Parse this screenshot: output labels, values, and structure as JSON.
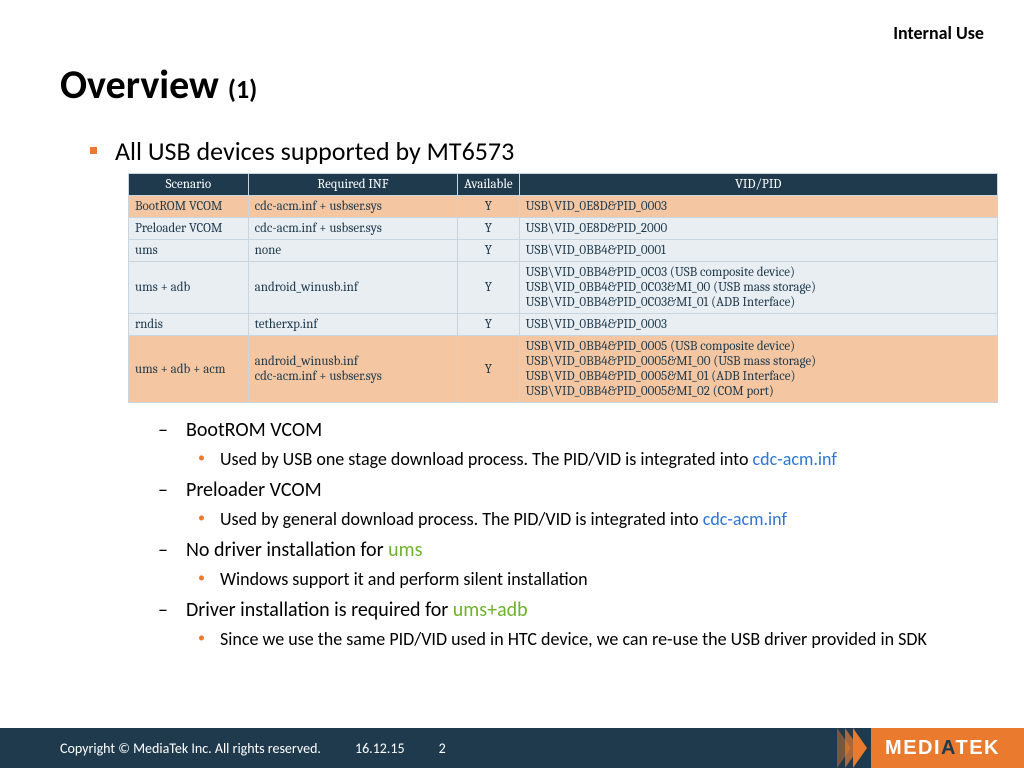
{
  "classification": "Internal Use",
  "title_main": "Overview ",
  "title_sub": "(1)",
  "bullet_main": "All USB devices supported by MT6573",
  "table": {
    "headers": [
      "Scenario",
      "Required INF",
      "Available",
      "VID/PID"
    ],
    "col_widths": [
      "120px",
      "210px",
      "60px",
      "480px"
    ],
    "rows": [
      {
        "cls": "orange",
        "cells": [
          "BootROM VCOM",
          "cdc-acm.inf + usbser.sys",
          "Y",
          "USB\\VID_0E8D&PID_0003"
        ]
      },
      {
        "cls": "light",
        "cells": [
          "Preloader VCOM",
          "cdc-acm.inf + usbser.sys",
          "Y",
          "USB\\VID_0E8D&PID_2000"
        ]
      },
      {
        "cls": "light",
        "cells": [
          "ums",
          "none",
          "Y",
          "USB\\VID_0BB4&PID_0001"
        ]
      },
      {
        "cls": "light",
        "cells": [
          "ums + adb",
          "android_winusb.inf",
          "Y",
          "USB\\VID_0BB4&PID_0C03 (USB composite device)\nUSB\\VID_0BB4&PID_0C03&MI_00 (USB mass storage)\nUSB\\VID_0BB4&PID_0C03&MI_01 (ADB Interface)"
        ]
      },
      {
        "cls": "light",
        "cells": [
          "rndis",
          "tetherxp.inf",
          "Y",
          "USB\\VID_0BB4&PID_0003"
        ]
      },
      {
        "cls": "orange",
        "cells": [
          "ums + adb + acm",
          "android_winusb.inf\ncdc-acm.inf + usbser.sys",
          "Y",
          "USB\\VID_0BB4&PID_0005 (USB composite device)\nUSB\\VID_0BB4&PID_0005&MI_00 (USB mass storage)\nUSB\\VID_0BB4&PID_0005&MI_01 (ADB Interface)\nUSB\\VID_0BB4&PID_0005&MI_02 (COM port)"
        ]
      }
    ]
  },
  "subs": [
    {
      "dash": "BootROM VCOM",
      "dots": [
        {
          "pre": "Used by USB one stage download process. The PID/VID is integrated into ",
          "hl": "cdc-acm.inf",
          "hlclass": "hl-blue",
          "post": ""
        }
      ]
    },
    {
      "dash": "Preloader VCOM",
      "dots": [
        {
          "pre": "Used by general download process. The PID/VID is integrated into ",
          "hl": "cdc-acm.inf",
          "hlclass": "hl-blue",
          "post": ""
        }
      ]
    },
    {
      "dash_pre": "No driver installation for ",
      "dash_hl": "ums",
      "dash_hlclass": "hl-green",
      "dots": [
        {
          "pre": "Windows support it and perform silent installation",
          "hl": "",
          "hlclass": "",
          "post": ""
        }
      ]
    },
    {
      "dash_pre": "Driver installation is required for ",
      "dash_hl": "ums+adb",
      "dash_hlclass": "hl-green",
      "dots": [
        {
          "pre": "Since we use the same PID/VID used in HTC device, we can re-use the USB driver provided in SDK",
          "hl": "",
          "hlclass": "",
          "post": ""
        }
      ]
    }
  ],
  "footer": {
    "copyright": "Copyright © MediaTek Inc. All rights reserved.",
    "date": "16.12.15",
    "page": "2"
  },
  "logo": {
    "part1": "MEDI",
    "part2": "A",
    "part3": "TEK"
  },
  "colors": {
    "header_bg": "#1f3a4d",
    "row_light": "#e8eef2",
    "row_orange": "#f4c7a2",
    "accent": "#e97a2e",
    "link_blue": "#2e75d6",
    "link_green": "#6fb22c"
  }
}
